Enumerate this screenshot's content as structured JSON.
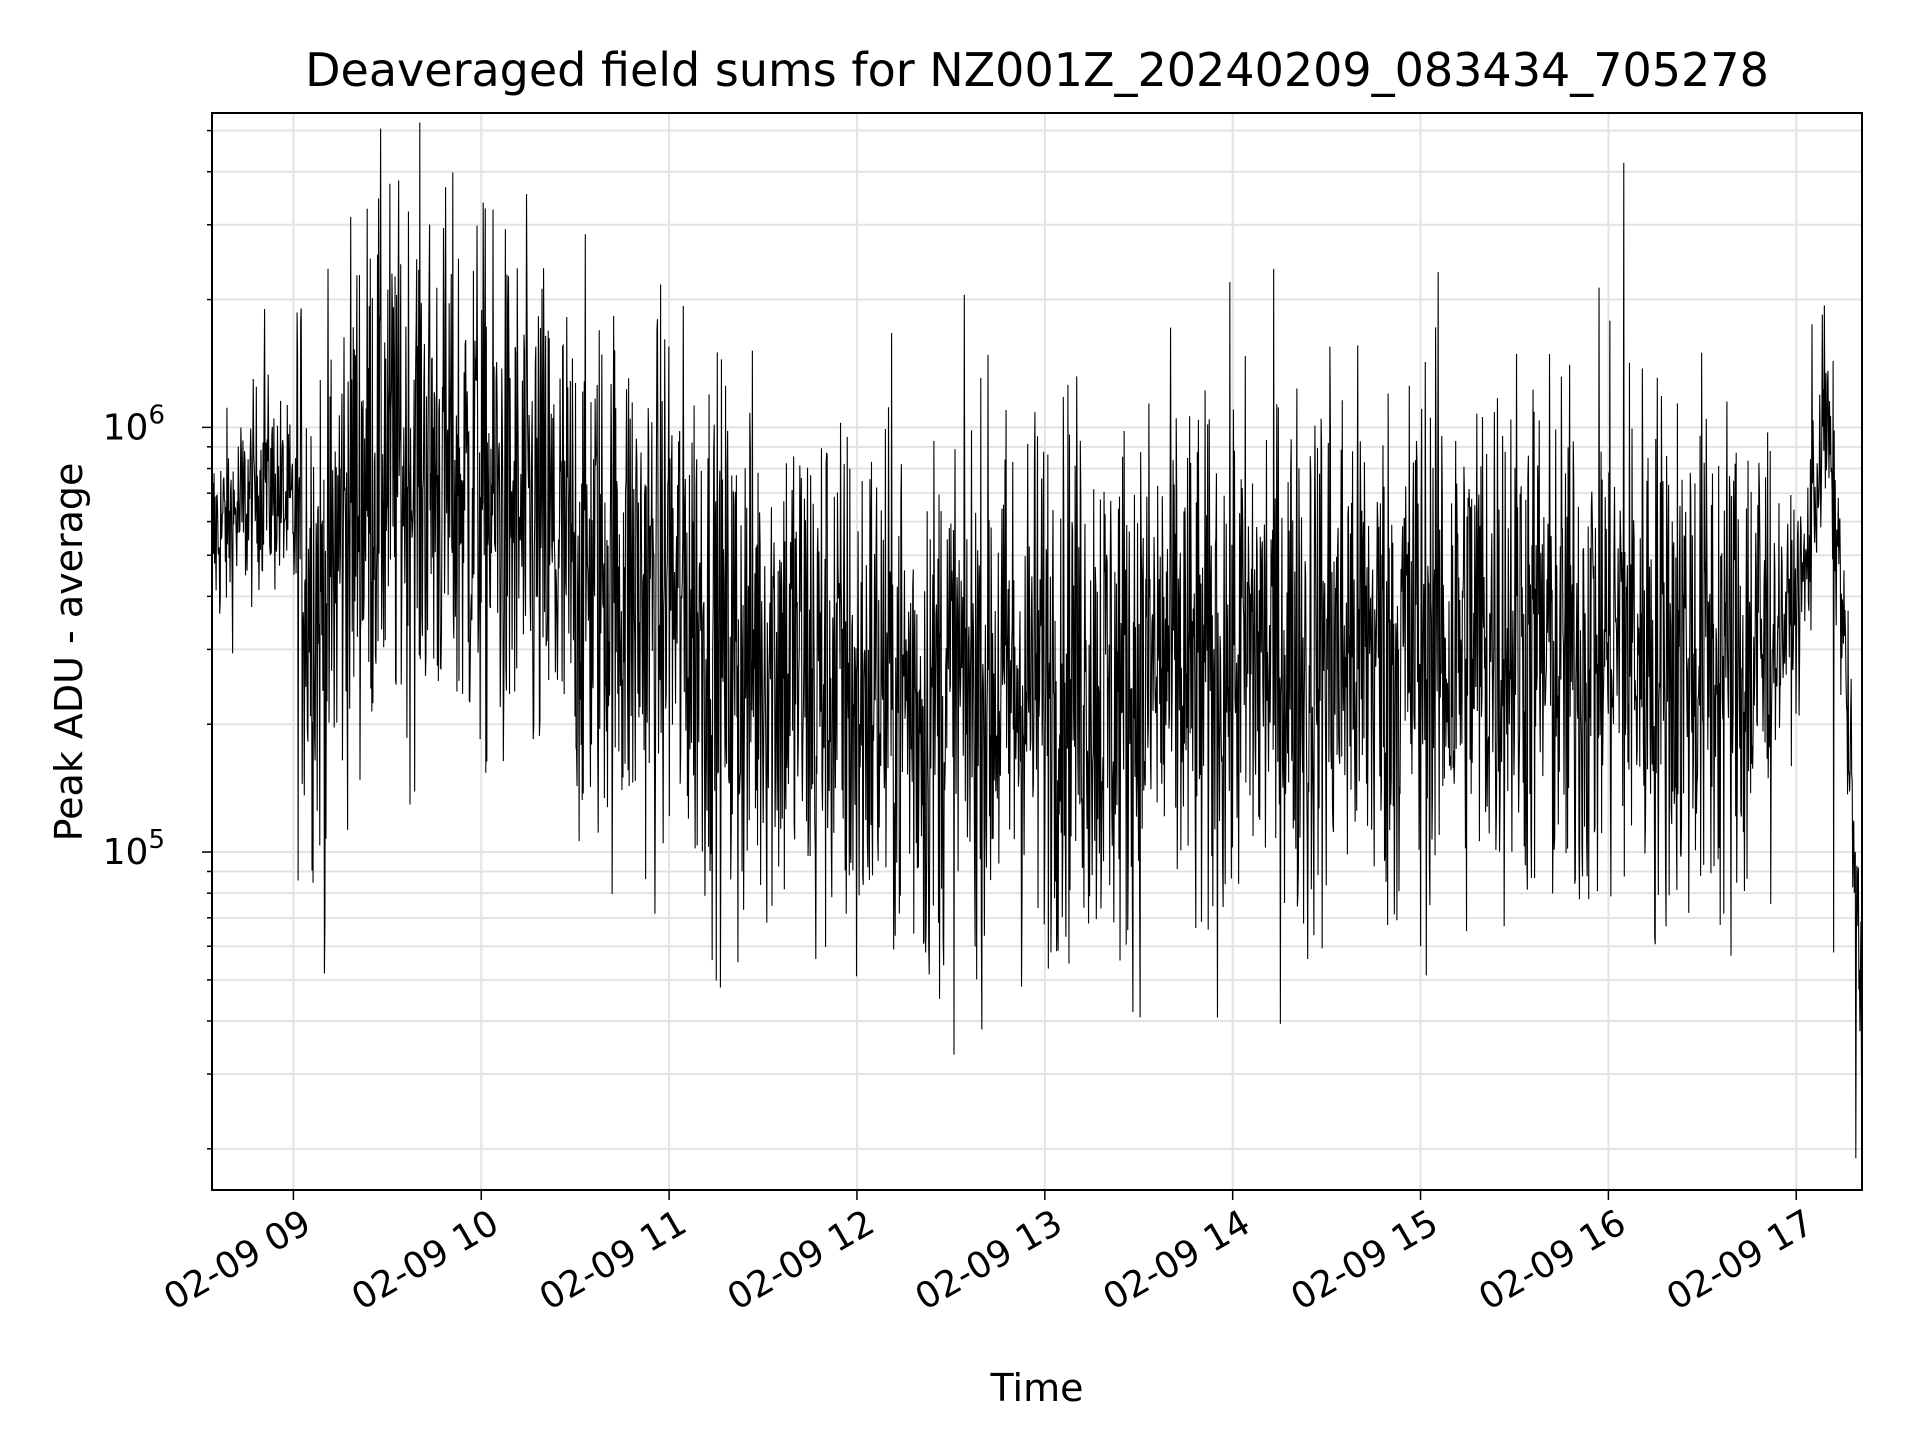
{
  "chart_data": {
    "type": "line",
    "title": "Deaveraged field sums for NZ001Z_20240209_083434_705278",
    "xlabel": "Time",
    "ylabel": "Peak ADU - average",
    "x_tick_labels": [
      "02-09 09",
      "02-09 10",
      "02-09 11",
      "02-09 12",
      "02-09 13",
      "02-09 14",
      "02-09 15",
      "02-09 16",
      "02-09 17"
    ],
    "y_tick_labels": [
      {
        "base": "10",
        "exp": "5",
        "value": 100000
      },
      {
        "base": "10",
        "exp": "6",
        "value": 1000000
      }
    ],
    "x_range": [
      "2024-02-09 08:34",
      "2024-02-09 17:21"
    ],
    "y_range": [
      16000,
      5500000
    ],
    "y_scale": "log",
    "grid": true,
    "legend": "none",
    "line_color": "#000000",
    "series": [
      {
        "x": [
          "2024-02-09 08:34",
          "2024-02-09 08:45",
          "2024-02-09 08:50",
          "2024-02-09 08:55",
          "2024-02-09 09:00",
          "2024-02-09 09:05",
          "2024-02-09 09:10",
          "2024-02-09 09:15",
          "2024-02-09 09:20",
          "2024-02-09 09:25",
          "2024-02-09 09:30",
          "2024-02-09 09:35",
          "2024-02-09 09:40",
          "2024-02-09 09:45",
          "2024-02-09 09:50",
          "2024-02-09 09:55",
          "2024-02-09 10:00",
          "2024-02-09 10:10",
          "2024-02-09 10:20",
          "2024-02-09 10:30",
          "2024-02-09 10:40",
          "2024-02-09 10:50",
          "2024-02-09 11:00",
          "2024-02-09 11:10",
          "2024-02-09 11:20",
          "2024-02-09 11:30",
          "2024-02-09 11:40",
          "2024-02-09 11:50",
          "2024-02-09 12:00",
          "2024-02-09 12:10",
          "2024-02-09 12:20",
          "2024-02-09 12:30",
          "2024-02-09 12:40",
          "2024-02-09 12:50",
          "2024-02-09 13:00",
          "2024-02-09 13:10",
          "2024-02-09 13:20",
          "2024-02-09 13:30",
          "2024-02-09 13:40",
          "2024-02-09 13:50",
          "2024-02-09 14:00",
          "2024-02-09 14:10",
          "2024-02-09 14:20",
          "2024-02-09 14:30",
          "2024-02-09 14:40",
          "2024-02-09 14:50",
          "2024-02-09 15:00",
          "2024-02-09 15:10",
          "2024-02-09 15:20",
          "2024-02-09 15:30",
          "2024-02-09 15:40",
          "2024-02-09 15:50",
          "2024-02-09 16:00",
          "2024-02-09 16:10",
          "2024-02-09 16:20",
          "2024-02-09 16:30",
          "2024-02-09 16:40",
          "2024-02-09 16:50",
          "2024-02-09 17:00",
          "2024-02-09 17:03",
          "2024-02-09 17:06",
          "2024-02-09 17:09",
          "2024-02-09 17:12",
          "2024-02-09 17:15",
          "2024-02-09 17:18",
          "2024-02-09 17:21"
        ],
        "y": [
          550000,
          650000,
          750000,
          700000,
          600000,
          450000,
          350000,
          550000,
          700000,
          800000,
          850000,
          800000,
          850000,
          800000,
          750000,
          700000,
          700000,
          600000,
          550000,
          450000,
          450000,
          400000,
          400000,
          350000,
          280000,
          300000,
          280000,
          260000,
          230000,
          250000,
          220000,
          230000,
          250000,
          240000,
          260000,
          280000,
          230000,
          250000,
          280000,
          240000,
          280000,
          300000,
          280000,
          290000,
          310000,
          280000,
          330000,
          300000,
          320000,
          340000,
          300000,
          280000,
          320000,
          310000,
          300000,
          290000,
          270000,
          300000,
          380000,
          450000,
          700000,
          1100000,
          700000,
          350000,
          120000,
          40000
        ],
        "spike_highs": [
          [
            "2024-02-09 08:51",
            1900000
          ],
          [
            "2024-02-09 09:33",
            2050000
          ],
          [
            "2024-02-09 09:58",
            1600000
          ],
          [
            "2024-02-09 11:00",
            1550000
          ],
          [
            "2024-02-09 14:31",
            1550000
          ],
          [
            "2024-02-09 15:05",
            1720000
          ],
          [
            "2024-02-09 16:05",
            4200000
          ],
          [
            "2024-02-09 17:05",
            1750000
          ]
        ],
        "spike_lows": [
          [
            "2024-02-09 09:10",
            68000
          ],
          [
            "2024-02-09 11:22",
            55000
          ],
          [
            "2024-02-09 11:47",
            56000
          ],
          [
            "2024-02-09 12:00",
            51000
          ],
          [
            "2024-02-09 12:22",
            58000
          ],
          [
            "2024-02-09 14:24",
            56000
          ],
          [
            "2024-02-09 15:00",
            60000
          ],
          [
            "2024-02-09 16:15",
            63000
          ],
          [
            "2024-02-09 17:12",
            58000
          ],
          [
            "2024-02-09 17:19",
            19000
          ]
        ]
      }
    ]
  }
}
